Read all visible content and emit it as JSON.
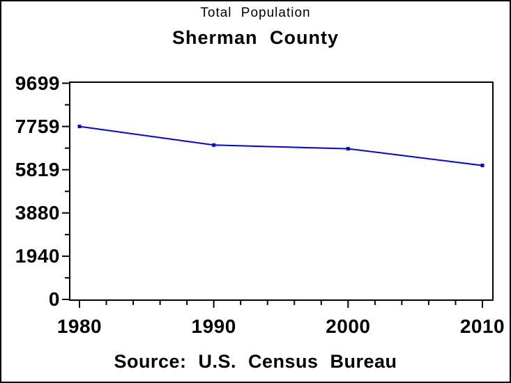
{
  "page": {
    "title": "Total Population",
    "subtitle": "Sherman County",
    "footnote": "Source: U.S. Census Bureau"
  },
  "chart_data": {
    "type": "line",
    "title": "Total Population",
    "subtitle": "Sherman County",
    "footnote": "Source: U.S. Census Bureau",
    "x": [
      1980,
      1990,
      2000,
      2010
    ],
    "series": [
      {
        "name": "Total Population",
        "values": [
          7759,
          6926,
          6760,
          6010
        ]
      }
    ],
    "xlim": [
      1980,
      2010
    ],
    "ylim": [
      0,
      9699
    ],
    "yticks": [
      0,
      1940,
      3880,
      5819,
      7759,
      9699
    ],
    "ytick_labels": [
      "0",
      "1940",
      "3880",
      "5819",
      "7759",
      "9699"
    ],
    "xticks": [
      1980,
      1990,
      2000,
      2010
    ],
    "xtick_labels": [
      "1980",
      "1990",
      "2000",
      "2010"
    ],
    "x_minor_tick_step_years": 2,
    "y_minor_ticks": "midpoints-between-majors",
    "grid": false,
    "legend": "none",
    "frame": true,
    "line_color": "#0000dd",
    "marker": "filled-square",
    "axis_color": "#000000",
    "background_color": "#ffffff"
  }
}
